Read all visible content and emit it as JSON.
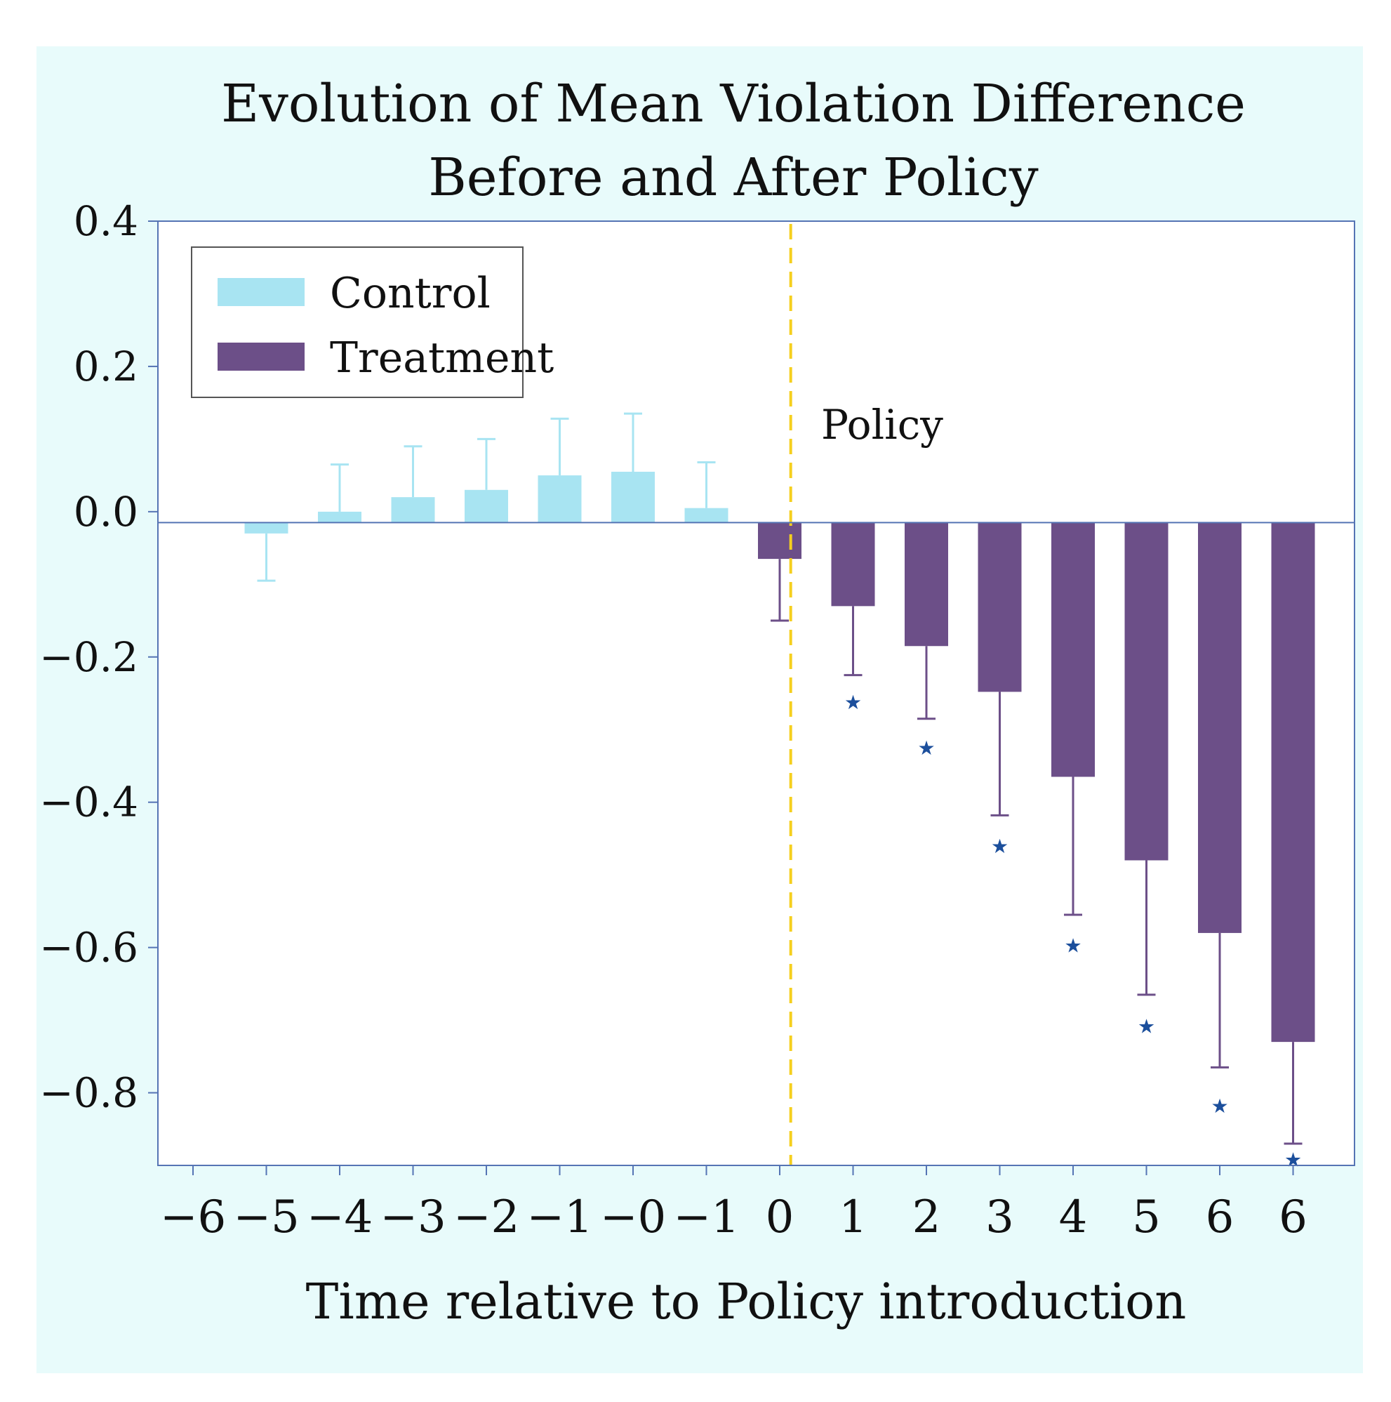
{
  "colors": {
    "figure_background": "#e8fbfb",
    "plot_background": "#ffffff",
    "control": "#a8e4f2",
    "treatment": "#6c4f88",
    "policy_line": "#f5cf1e",
    "axis": "#5574b4",
    "star": "#1c4f9c",
    "text": "#111111"
  },
  "chart_data": {
    "type": "bar",
    "title": [
      "Evolution of Mean Violation Difference",
      "Before and After Policy"
    ],
    "xlabel": "Time relative to Policy introduction",
    "ylabel": "",
    "ylim": [
      -0.9,
      0.4
    ],
    "yticks": [
      0.4,
      0.2,
      0.0,
      -0.2,
      -0.4,
      -0.6,
      -0.8
    ],
    "ytick_labels": [
      "0.4",
      "0.2",
      "0.0",
      "−0.2",
      "−0.4",
      "−0.6",
      "−0.8"
    ],
    "categories": [
      "−6",
      "−5",
      "−4",
      "−3",
      "−2",
      "−1",
      "−0",
      "−1",
      "0",
      "1",
      "2",
      "3",
      "4",
      "5",
      "6",
      "6"
    ],
    "baseline": -0.015,
    "series": [
      {
        "name": "Control",
        "values": [
          null,
          -0.03,
          0.0,
          0.02,
          0.03,
          0.05,
          0.055,
          0.005,
          null,
          null,
          null,
          null,
          null,
          null,
          null,
          null
        ],
        "error_end": [
          null,
          -0.095,
          0.065,
          0.09,
          0.1,
          0.128,
          0.135,
          0.068,
          null,
          null,
          null,
          null,
          null,
          null,
          null,
          null
        ]
      },
      {
        "name": "Treatment",
        "values": [
          null,
          null,
          null,
          null,
          null,
          null,
          null,
          null,
          -0.065,
          -0.13,
          -0.185,
          -0.248,
          -0.365,
          -0.48,
          -0.58,
          -0.73
        ],
        "error_end": [
          null,
          null,
          null,
          null,
          null,
          null,
          null,
          null,
          -0.15,
          -0.225,
          -0.285,
          -0.418,
          -0.555,
          -0.665,
          -0.765,
          -0.87
        ],
        "significance": [
          null,
          null,
          null,
          null,
          null,
          null,
          null,
          null,
          null,
          "★",
          "★",
          "★",
          "★",
          "★",
          "★",
          "★"
        ],
        "star_values": [
          null,
          null,
          null,
          null,
          null,
          null,
          null,
          null,
          null,
          -0.262,
          -0.325,
          -0.46,
          -0.597,
          -0.708,
          -0.818,
          -0.892
        ]
      }
    ],
    "policy_line": {
      "x_index": 8.15,
      "label": "Policy"
    },
    "legend": {
      "position": "top-left",
      "entries": [
        "Control",
        "Treatment"
      ]
    }
  }
}
